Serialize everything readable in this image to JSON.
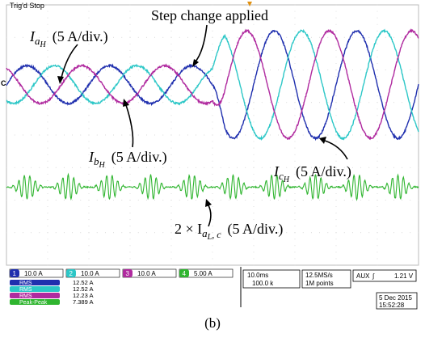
{
  "header": {
    "mode": "Trig'd Stop",
    "trigger_marker": "T"
  },
  "annotations": {
    "step": "Step change applied",
    "ia_main": "I",
    "ia_sub": "a",
    "ia_sub2": "H",
    "ia_scale": "(5 A/div.)",
    "ib_main": "I",
    "ib_sub": "b",
    "ib_sub2": "H",
    "ib_scale": "(5 A/div.)",
    "ic_main": "I",
    "ic_sub": "c",
    "ic_sub2": "H",
    "ic_scale": "(5 A/div.)",
    "load_prefix": "2 × I",
    "load_sub": "a",
    "load_sub2": "L",
    "load_sub3": ", c",
    "load_scale": "(5 A/div.)"
  },
  "status": {
    "channels": [
      {
        "num": "1",
        "scale": "10.0 A",
        "color": "#1f2fae"
      },
      {
        "num": "2",
        "scale": "10.0 A",
        "color": "#2cc7c7"
      },
      {
        "num": "3",
        "scale": "10.0 A",
        "color": "#b02a9f"
      },
      {
        "num": "4",
        "scale": "5.00 A",
        "color": "#2fb52f"
      }
    ],
    "measurements": [
      {
        "label": "RMS",
        "value": "12.52 A",
        "color": "#1f2fae"
      },
      {
        "label": "RMS",
        "value": "12.52 A",
        "color": "#2cc7c7"
      },
      {
        "label": "RMS",
        "value": "12.23 A",
        "color": "#b02a9f"
      },
      {
        "label": "Peak-Peak",
        "value": "7.389 A",
        "color": "#2fb52f"
      }
    ],
    "timebase": "10.0ms",
    "position": "100.0 k",
    "sample_rate": "12.5MS/s",
    "record": "1M points",
    "trigger_src": "AUX",
    "trigger_level": "1.21 V",
    "date": "5 Dec 2015",
    "time": "15:52:28"
  },
  "caption": "(b)",
  "chart_data": {
    "type": "line",
    "title": "",
    "xlabel": "",
    "ylabel": "",
    "x_unit": "ms",
    "x_range": [
      0,
      100
    ],
    "step_time_ms": 50,
    "frequency_hz": 50,
    "series": [
      {
        "name": "IaH",
        "color": "#1f2fae",
        "amplitude_before_div": 0.58,
        "amplitude_after_div": 1.65,
        "phase_deg": 0,
        "offset_div": 1.55
      },
      {
        "name": "IbH",
        "color": "#2cc7c7",
        "amplitude_before_div": 0.58,
        "amplitude_after_div": 1.65,
        "phase_deg": -120,
        "offset_div": 1.55
      },
      {
        "name": "IcH",
        "color": "#b02a9f",
        "amplitude_before_div": 0.58,
        "amplitude_after_div": 1.65,
        "phase_deg": 120,
        "offset_div": 1.55
      },
      {
        "name": "2 × IaL,c",
        "color": "#2fb52f",
        "amplitude_burst_div": 0.38,
        "burst_period_ms": 10,
        "offset_div": -1.6
      }
    ]
  }
}
